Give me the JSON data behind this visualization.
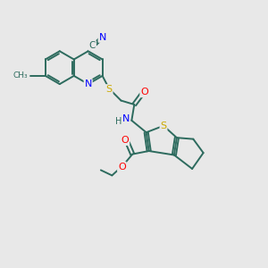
{
  "bg_color": "#e8e8e8",
  "bond_color": "#2d6b5e",
  "atom_colors": {
    "N": "#0000ff",
    "S": "#ccaa00",
    "O": "#ff0000",
    "C": "#2d6b5e",
    "H": "#2d6b5e"
  }
}
